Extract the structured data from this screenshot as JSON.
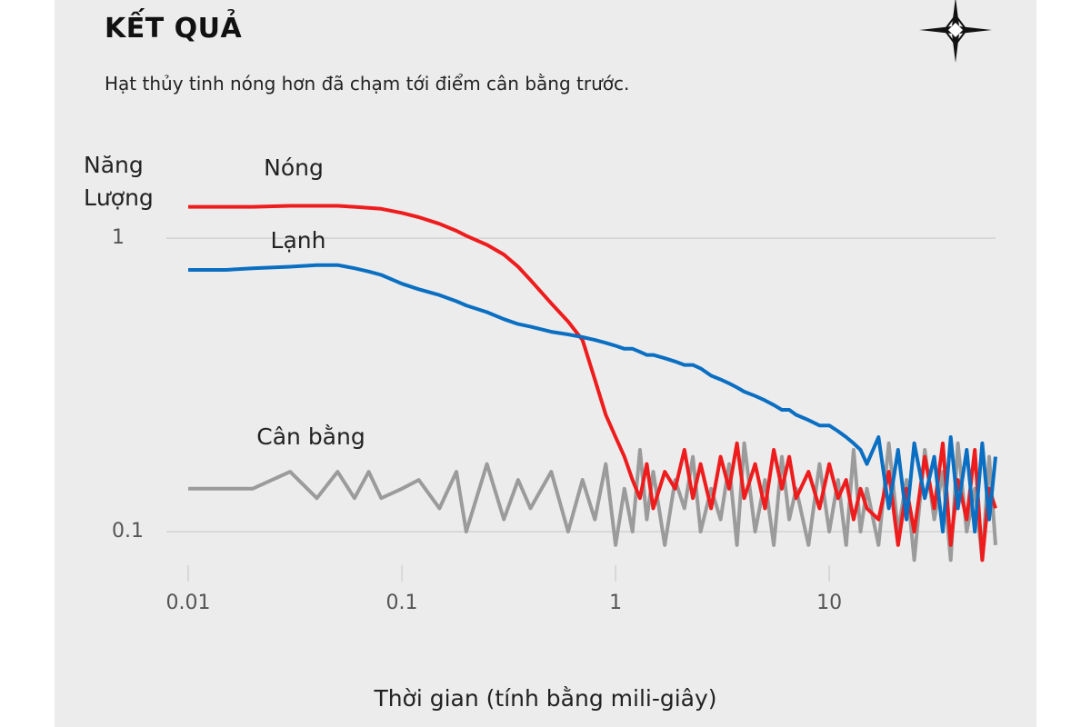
{
  "chart_data": {
    "type": "line",
    "title": "KẾT QUẢ",
    "subtitle": "Hạt thủy tinh nóng hơn đã chạm tới điểm cân bằng trước.",
    "y_label": "Năng Lượng",
    "x_label": "Thời gian (tính bằng mili-giây)",
    "x_scale": "log",
    "y_scale": "log",
    "grid": true,
    "xlim": [
      0.01,
      60
    ],
    "ylim": [
      0.07,
      1.4
    ],
    "xticks": [
      0.01,
      0.1,
      1,
      10
    ],
    "yticks": [
      0.1,
      1
    ],
    "x": [
      0.01,
      0.015,
      0.02,
      0.03,
      0.04,
      0.05,
      0.06,
      0.07,
      0.08,
      0.1,
      0.12,
      0.15,
      0.18,
      0.2,
      0.25,
      0.3,
      0.35,
      0.4,
      0.5,
      0.6,
      0.7,
      0.8,
      0.9,
      1,
      1.1,
      1.2,
      1.3,
      1.4,
      1.5,
      1.7,
      1.9,
      2.1,
      2.3,
      2.5,
      2.8,
      3.1,
      3.4,
      3.7,
      4,
      4.5,
      5,
      5.5,
      6,
      6.5,
      7,
      8,
      9,
      10,
      11,
      12,
      13,
      14,
      15,
      17,
      19,
      21,
      23,
      25,
      28,
      31,
      34,
      37,
      40,
      44,
      48,
      52,
      56,
      60
    ],
    "series": [
      {
        "name": "Cân bằng",
        "color": "#9b9b9b",
        "values": [
          0.14,
          0.14,
          0.14,
          0.16,
          0.13,
          0.16,
          0.13,
          0.16,
          0.13,
          0.14,
          0.15,
          0.12,
          0.16,
          0.1,
          0.17,
          0.11,
          0.15,
          0.12,
          0.16,
          0.1,
          0.15,
          0.11,
          0.17,
          0.09,
          0.14,
          0.1,
          0.19,
          0.11,
          0.16,
          0.09,
          0.15,
          0.12,
          0.18,
          0.1,
          0.14,
          0.11,
          0.17,
          0.09,
          0.2,
          0.1,
          0.15,
          0.09,
          0.18,
          0.11,
          0.14,
          0.09,
          0.17,
          0.1,
          0.15,
          0.09,
          0.19,
          0.1,
          0.14,
          0.09,
          0.2,
          0.1,
          0.15,
          0.08,
          0.19,
          0.11,
          0.16,
          0.08,
          0.2,
          0.1,
          0.14,
          0.08,
          0.18,
          0.09
        ]
      },
      {
        "name": "Nóng",
        "color": "#ee1c1c",
        "values": [
          1.28,
          1.28,
          1.28,
          1.29,
          1.29,
          1.29,
          1.28,
          1.27,
          1.26,
          1.22,
          1.18,
          1.12,
          1.06,
          1.02,
          0.95,
          0.88,
          0.8,
          0.72,
          0.6,
          0.52,
          0.45,
          0.33,
          0.25,
          0.21,
          0.18,
          0.15,
          0.13,
          0.17,
          0.12,
          0.16,
          0.14,
          0.19,
          0.13,
          0.17,
          0.12,
          0.18,
          0.14,
          0.2,
          0.13,
          0.17,
          0.12,
          0.19,
          0.14,
          0.18,
          0.13,
          0.16,
          0.12,
          0.17,
          0.13,
          0.15,
          0.11,
          0.14,
          0.12,
          0.11,
          0.16,
          0.09,
          0.14,
          0.1,
          0.18,
          0.12,
          0.2,
          0.09,
          0.15,
          0.11,
          0.19,
          0.08,
          0.14,
          0.12
        ]
      },
      {
        "name": "Lạnh",
        "color": "#0a6fc2",
        "values": [
          0.78,
          0.78,
          0.79,
          0.8,
          0.81,
          0.81,
          0.79,
          0.77,
          0.75,
          0.7,
          0.67,
          0.64,
          0.61,
          0.59,
          0.56,
          0.53,
          0.51,
          0.5,
          0.48,
          0.47,
          0.46,
          0.45,
          0.44,
          0.43,
          0.42,
          0.42,
          0.41,
          0.4,
          0.4,
          0.39,
          0.38,
          0.37,
          0.37,
          0.36,
          0.34,
          0.33,
          0.32,
          0.31,
          0.3,
          0.29,
          0.28,
          0.27,
          0.26,
          0.26,
          0.25,
          0.24,
          0.23,
          0.23,
          0.22,
          0.21,
          0.2,
          0.19,
          0.17,
          0.21,
          0.12,
          0.19,
          0.11,
          0.2,
          0.13,
          0.18,
          0.1,
          0.21,
          0.12,
          0.19,
          0.1,
          0.2,
          0.11,
          0.18
        ]
      }
    ]
  }
}
